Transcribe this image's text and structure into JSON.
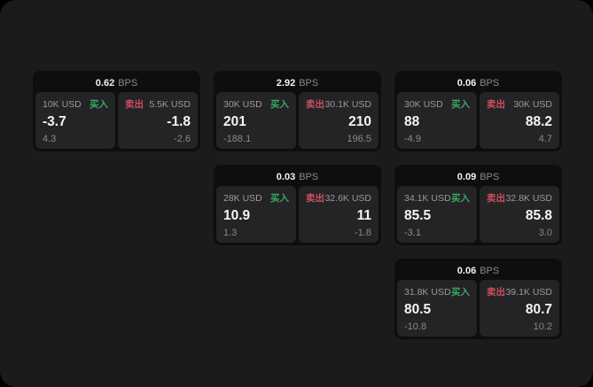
{
  "colors": {
    "page_bg": "#000000",
    "panel_bg": "#1b1b1c",
    "card_bg": "#0e0e0f",
    "tile_bg": "#242426",
    "text_primary": "#f5f5f5",
    "text_secondary": "#8a8a8a",
    "buy_green": "#3da865",
    "sell_red": "#ce4f60"
  },
  "labels": {
    "bps_unit": "BPS",
    "buy": "买入",
    "sell": "卖出"
  },
  "cards": [
    {
      "bps": "0.62",
      "buy": {
        "size": "10K USD",
        "value": "-3.7",
        "delta": "4.3"
      },
      "sell": {
        "size": "5.5K USD",
        "value": "-1.8",
        "delta": "-2.6"
      }
    },
    {
      "bps": "2.92",
      "buy": {
        "size": "30K USD",
        "value": "201",
        "delta": "-188.1"
      },
      "sell": {
        "size": "30.1K USD",
        "value": "210",
        "delta": "196.5"
      }
    },
    {
      "bps": "0.06",
      "buy": {
        "size": "30K USD",
        "value": "88",
        "delta": "-4.9"
      },
      "sell": {
        "size": "30K USD",
        "value": "88.2",
        "delta": "4.7"
      }
    },
    {
      "bps": "0.03",
      "buy": {
        "size": "28K USD",
        "value": "10.9",
        "delta": "1.3"
      },
      "sell": {
        "size": "32.6K USD",
        "value": "11",
        "delta": "-1.8"
      }
    },
    {
      "bps": "0.09",
      "buy": {
        "size": "34.1K USD",
        "value": "85.5",
        "delta": "-3.1"
      },
      "sell": {
        "size": "32.8K USD",
        "value": "85.8",
        "delta": "3.0"
      }
    },
    {
      "bps": "0.06",
      "buy": {
        "size": "31.8K USD",
        "value": "80.5",
        "delta": "-10.8"
      },
      "sell": {
        "size": "39.1K USD",
        "value": "80.7",
        "delta": "10.2"
      }
    }
  ]
}
